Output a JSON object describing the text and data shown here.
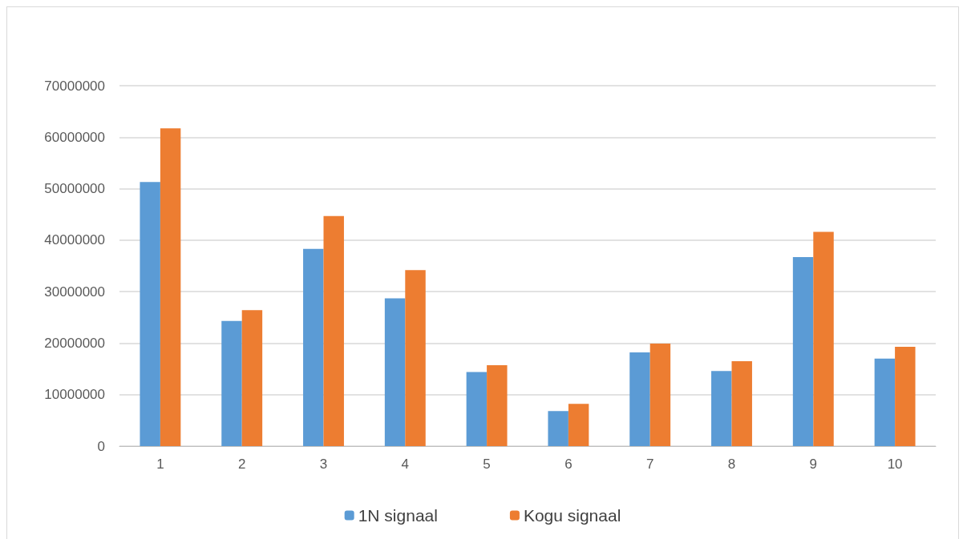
{
  "chart_data": {
    "type": "bar",
    "categories": [
      "1",
      "2",
      "3",
      "4",
      "5",
      "6",
      "7",
      "8",
      "9",
      "10"
    ],
    "series": [
      {
        "name": "1N signaal",
        "color": "#5b9bd5",
        "values": [
          51300000,
          24300000,
          38300000,
          28700000,
          14400000,
          6800000,
          18200000,
          14600000,
          36700000,
          17000000
        ]
      },
      {
        "name": "Kogu signaal",
        "color": "#ed7d31",
        "values": [
          61700000,
          26400000,
          44700000,
          34200000,
          15700000,
          8200000,
          19900000,
          16500000,
          41600000,
          19300000
        ]
      }
    ],
    "ylim": [
      0,
      70000000
    ],
    "yticks": [
      0,
      10000000,
      20000000,
      30000000,
      40000000,
      50000000,
      60000000,
      70000000
    ],
    "grid": "y",
    "legend": "bottom"
  }
}
